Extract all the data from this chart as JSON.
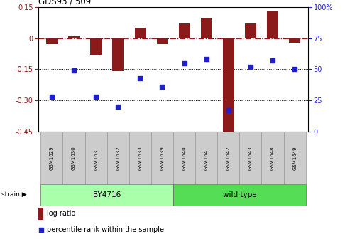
{
  "title": "GDS93 / 509",
  "samples": [
    "GSM1629",
    "GSM1630",
    "GSM1631",
    "GSM1632",
    "GSM1633",
    "GSM1639",
    "GSM1640",
    "GSM1641",
    "GSM1642",
    "GSM1643",
    "GSM1648",
    "GSM1649"
  ],
  "log_ratio": [
    -0.03,
    0.01,
    -0.08,
    -0.16,
    0.05,
    -0.03,
    0.07,
    0.1,
    -0.47,
    0.07,
    0.13,
    -0.02
  ],
  "percentile": [
    28,
    49,
    28,
    20,
    43,
    36,
    55,
    58,
    17,
    52,
    57,
    50
  ],
  "by4716_count": 6,
  "ylim_left": [
    -0.45,
    0.15
  ],
  "ylim_right": [
    0,
    100
  ],
  "yticks_left": [
    0.15,
    0.0,
    -0.15,
    -0.3,
    -0.45
  ],
  "yticks_right": [
    100,
    75,
    50,
    25,
    0
  ],
  "hline_y": [
    -0.15,
    -0.3
  ],
  "bar_color": "#8B1A1A",
  "dot_color": "#1F1FCD",
  "by4716_color": "#AAFFAA",
  "wild_type_color": "#55DD55",
  "sample_box_color": "#CCCCCC",
  "strain_label_by4716": "BY4716",
  "strain_label_wild": "wild type",
  "strain_row_label": "strain",
  "legend_log_ratio": "log ratio",
  "legend_percentile": "percentile rank within the sample"
}
